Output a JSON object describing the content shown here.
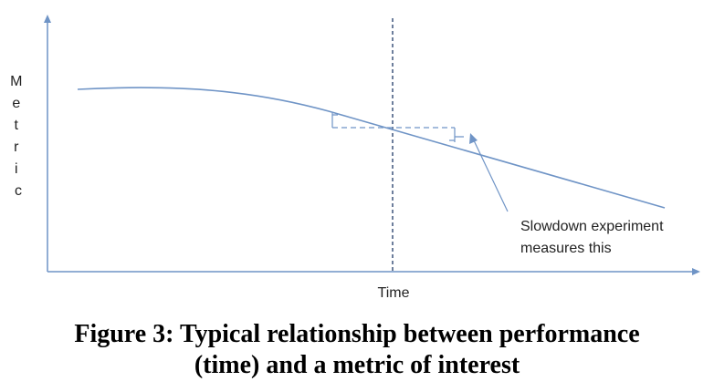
{
  "diagram": {
    "y_axis_label": "Metric",
    "x_axis_label": "Time",
    "annotation": {
      "line1": "Slowdown experiment",
      "line2": "measures this"
    }
  },
  "caption": {
    "line1": "Figure 3: Typical relationship between performance",
    "line2": "(time) and a metric of interest"
  },
  "colors": {
    "axis": "#6f94c6",
    "curve": "#6f94c6",
    "dashed": "#1f3a66",
    "text": "#222222"
  }
}
